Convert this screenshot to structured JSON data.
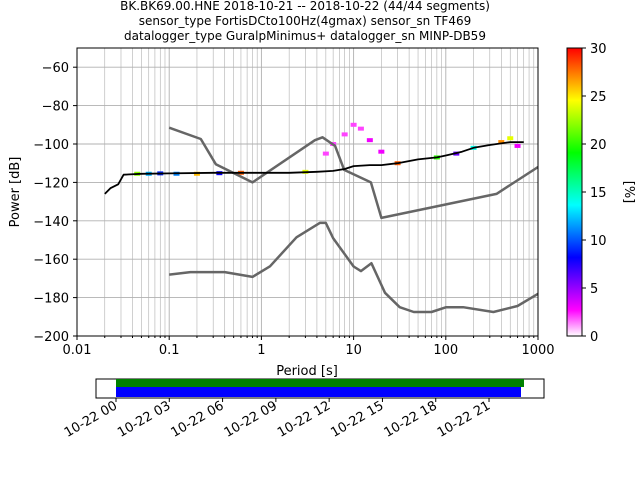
{
  "title": {
    "line1": "BK.BK69.00.HNE   2018-10-21 -- 2018-10-22  (44/44 segments)",
    "line2": "sensor_type FortisDCto100Hz(4gmax) sensor_sn TF469",
    "line3": "datalogger_type GuralpMinimus+ datalogger_sn MINP-DB59"
  },
  "chart_data": {
    "type": "heatmap",
    "xlabel": "Period [s]",
    "ylabel": "Power [dB]",
    "xscale": "log",
    "xlim": [
      0.01,
      1000
    ],
    "ylim": [
      -200,
      -50
    ],
    "xticks": [
      {
        "value": 0.01,
        "label": "0.01"
      },
      {
        "value": 0.1,
        "label": "0.1"
      },
      {
        "value": 1,
        "label": "1"
      },
      {
        "value": 10,
        "label": "10"
      },
      {
        "value": 100,
        "label": "100"
      },
      {
        "value": 1000,
        "label": "1000"
      }
    ],
    "yticks": [
      {
        "value": -200,
        "label": "−200"
      },
      {
        "value": -180,
        "label": "−180"
      },
      {
        "value": -160,
        "label": "−160"
      },
      {
        "value": -140,
        "label": "−140"
      },
      {
        "value": -120,
        "label": "−120"
      },
      {
        "value": -100,
        "label": "−100"
      },
      {
        "value": -80,
        "label": "−80"
      },
      {
        "value": -60,
        "label": "−60"
      }
    ],
    "grid": true,
    "colorbar": {
      "label": "[%]",
      "min": 0,
      "max": 30,
      "ticks": [
        {
          "value": 0,
          "label": "0"
        },
        {
          "value": 5,
          "label": "5"
        },
        {
          "value": 10,
          "label": "10"
        },
        {
          "value": 15,
          "label": "15"
        },
        {
          "value": 20,
          "label": "20"
        },
        {
          "value": 25,
          "label": "25"
        },
        {
          "value": 30,
          "label": "30"
        }
      ],
      "colors": [
        "#ffffff",
        "#ff00ff",
        "#8000ff",
        "#0000ff",
        "#0080ff",
        "#00ffff",
        "#00ff80",
        "#00ff00",
        "#80ff00",
        "#ffff00",
        "#ff8000",
        "#ff0000"
      ]
    },
    "noise_models": {
      "color": "#666666",
      "nlnm": [
        [
          0.1,
          -168
        ],
        [
          0.17,
          -166.7
        ],
        [
          0.4,
          -166.7
        ],
        [
          0.8,
          -169.2
        ],
        [
          1.24,
          -163.7
        ],
        [
          2.4,
          -148.6
        ],
        [
          4.3,
          -141.1
        ],
        [
          5.0,
          -141.1
        ],
        [
          6.0,
          -149
        ],
        [
          10,
          -163.8
        ],
        [
          12,
          -166.2
        ],
        [
          15.6,
          -162.1
        ],
        [
          21.9,
          -177.5
        ],
        [
          31.6,
          -185
        ],
        [
          45,
          -187.5
        ],
        [
          70,
          -187.5
        ],
        [
          101,
          -185
        ],
        [
          154,
          -185
        ],
        [
          328,
          -187.5
        ],
        [
          600,
          -184.4
        ],
        [
          1000,
          -178
        ]
      ],
      "nhnm": [
        [
          0.1,
          -91.5
        ],
        [
          0.22,
          -97.4
        ],
        [
          0.32,
          -110.5
        ],
        [
          0.8,
          -120
        ],
        [
          3.8,
          -98
        ],
        [
          4.6,
          -96.5
        ],
        [
          6.3,
          -101
        ],
        [
          7.9,
          -113.5
        ],
        [
          15.4,
          -120
        ],
        [
          20,
          -138.5
        ],
        [
          354.8,
          -126
        ],
        [
          1000,
          -112
        ]
      ]
    },
    "mean_psd": {
      "color": "#000000",
      "points": [
        [
          0.02,
          -126
        ],
        [
          0.023,
          -123
        ],
        [
          0.028,
          -121
        ],
        [
          0.032,
          -116
        ],
        [
          0.05,
          -115.5
        ],
        [
          0.1,
          -115.3
        ],
        [
          0.3,
          -115
        ],
        [
          1,
          -115
        ],
        [
          2,
          -115
        ],
        [
          4,
          -114.5
        ],
        [
          6,
          -114
        ],
        [
          8,
          -113
        ],
        [
          10,
          -111.5
        ],
        [
          15,
          -111
        ],
        [
          20,
          -111
        ],
        [
          30,
          -110
        ],
        [
          50,
          -108
        ],
        [
          80,
          -107
        ],
        [
          100,
          -106
        ],
        [
          150,
          -104
        ],
        [
          200,
          -102
        ],
        [
          300,
          -100.5
        ],
        [
          500,
          -99
        ],
        [
          700,
          -99
        ]
      ]
    },
    "density": [
      {
        "period": 0.045,
        "power": -115.5,
        "pct": 22
      },
      {
        "period": 0.06,
        "power": -115.5,
        "pct": 12
      },
      {
        "period": 0.08,
        "power": -115.3,
        "pct": 9
      },
      {
        "period": 0.12,
        "power": -115.5,
        "pct": 11
      },
      {
        "period": 0.2,
        "power": -115.5,
        "pct": 26
      },
      {
        "period": 0.35,
        "power": -115.2,
        "pct": 8
      },
      {
        "period": 0.6,
        "power": -115,
        "pct": 28
      },
      {
        "period": 3,
        "power": -114.5,
        "pct": 24
      },
      {
        "period": 5,
        "power": -105,
        "pct": 2
      },
      {
        "period": 6,
        "power": -100,
        "pct": 2
      },
      {
        "period": 8,
        "power": -95,
        "pct": 2
      },
      {
        "period": 10,
        "power": -90,
        "pct": 2
      },
      {
        "period": 12,
        "power": -92,
        "pct": 2
      },
      {
        "period": 15,
        "power": -98,
        "pct": 3
      },
      {
        "period": 20,
        "power": -104,
        "pct": 3
      },
      {
        "period": 30,
        "power": -110,
        "pct": 28
      },
      {
        "period": 80,
        "power": -107,
        "pct": 20
      },
      {
        "period": 130,
        "power": -105,
        "pct": 6
      },
      {
        "period": 200,
        "power": -102,
        "pct": 14
      },
      {
        "period": 400,
        "power": -99,
        "pct": 27
      },
      {
        "period": 500,
        "power": -97,
        "pct": 24
      },
      {
        "period": 600,
        "power": -101,
        "pct": 3
      }
    ]
  },
  "timeline": {
    "tick_labels": [
      "10-22 00",
      "10-22 03",
      "10-22 06",
      "10-22 09",
      "10-22 12",
      "10-22 15",
      "10-22 18",
      "10-22 21"
    ],
    "green_bar_color": "#008000",
    "blue_bar_color": "#0000ff"
  }
}
